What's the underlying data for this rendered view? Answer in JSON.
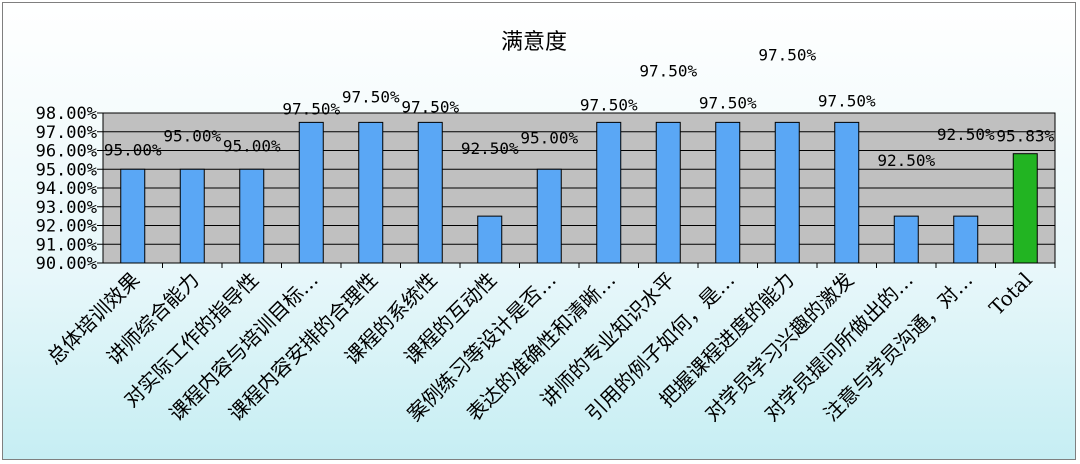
{
  "chart_data": {
    "type": "bar",
    "title": "满意度",
    "xlabel": "",
    "ylabel": "",
    "ylim": [
      90,
      98
    ],
    "y_ticks": [
      "90.00%",
      "91.00%",
      "92.00%",
      "93.00%",
      "94.00%",
      "95.00%",
      "96.00%",
      "97.00%",
      "98.00%"
    ],
    "grid": "horizontal",
    "categories": [
      "总体培训效果",
      "讲师综合能力",
      "对实际工作的指导性",
      "课程内容与培训目标…",
      "课程内容安排的合理性",
      "课程的系统性",
      "课程的互动性",
      "案例练习等设计是否…",
      "表达的准确性和清晰…",
      "讲师的专业知识水平",
      "引用的例子如何，是…",
      "把握课程进度的能力",
      "对学员学习兴趣的激发",
      "对学员提问所做出的…",
      "注意与学员沟通，对…",
      "Total"
    ],
    "values": [
      95.0,
      95.0,
      95.0,
      97.5,
      97.5,
      97.5,
      92.5,
      95.0,
      97.5,
      97.5,
      97.5,
      97.5,
      97.5,
      92.5,
      92.5,
      95.83
    ],
    "data_labels": [
      "95.00%",
      "95.00%",
      "95.00%",
      "97.50%",
      "97.50%",
      "97.50%",
      "92.50%",
      "95.00%",
      "97.50%",
      "97.50%",
      "97.50%",
      "97.50%",
      "97.50%",
      "92.50%",
      "92.50%",
      "95.83%"
    ],
    "colors": {
      "bar": "#5aa7f5",
      "total_bar": "#22b422",
      "plot_background": "#c0c0c0",
      "gridline": "#000000"
    }
  }
}
